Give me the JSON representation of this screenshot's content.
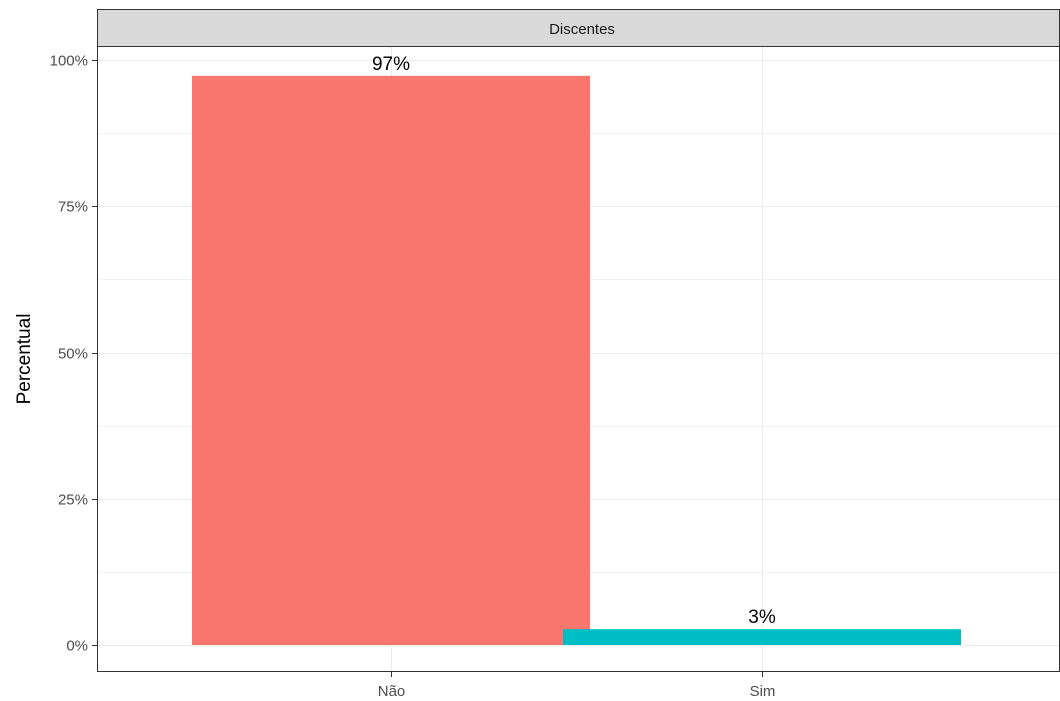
{
  "chart_data": {
    "type": "bar",
    "facet_label": "Discentes",
    "categories": [
      "Não",
      "Sim"
    ],
    "values": [
      97.3,
      2.7
    ],
    "data_labels": [
      "97%",
      "3%"
    ],
    "colors": [
      "#f8766d",
      "#00bfc4"
    ],
    "xlabel": "",
    "ylabel": "Percentual",
    "ylim": [
      0,
      100
    ],
    "y_ticks": [
      0,
      25,
      50,
      75,
      100
    ],
    "y_tick_labels": [
      "0%",
      "25%",
      "50%",
      "75%",
      "100%"
    ],
    "grid": true,
    "legend": "none"
  }
}
